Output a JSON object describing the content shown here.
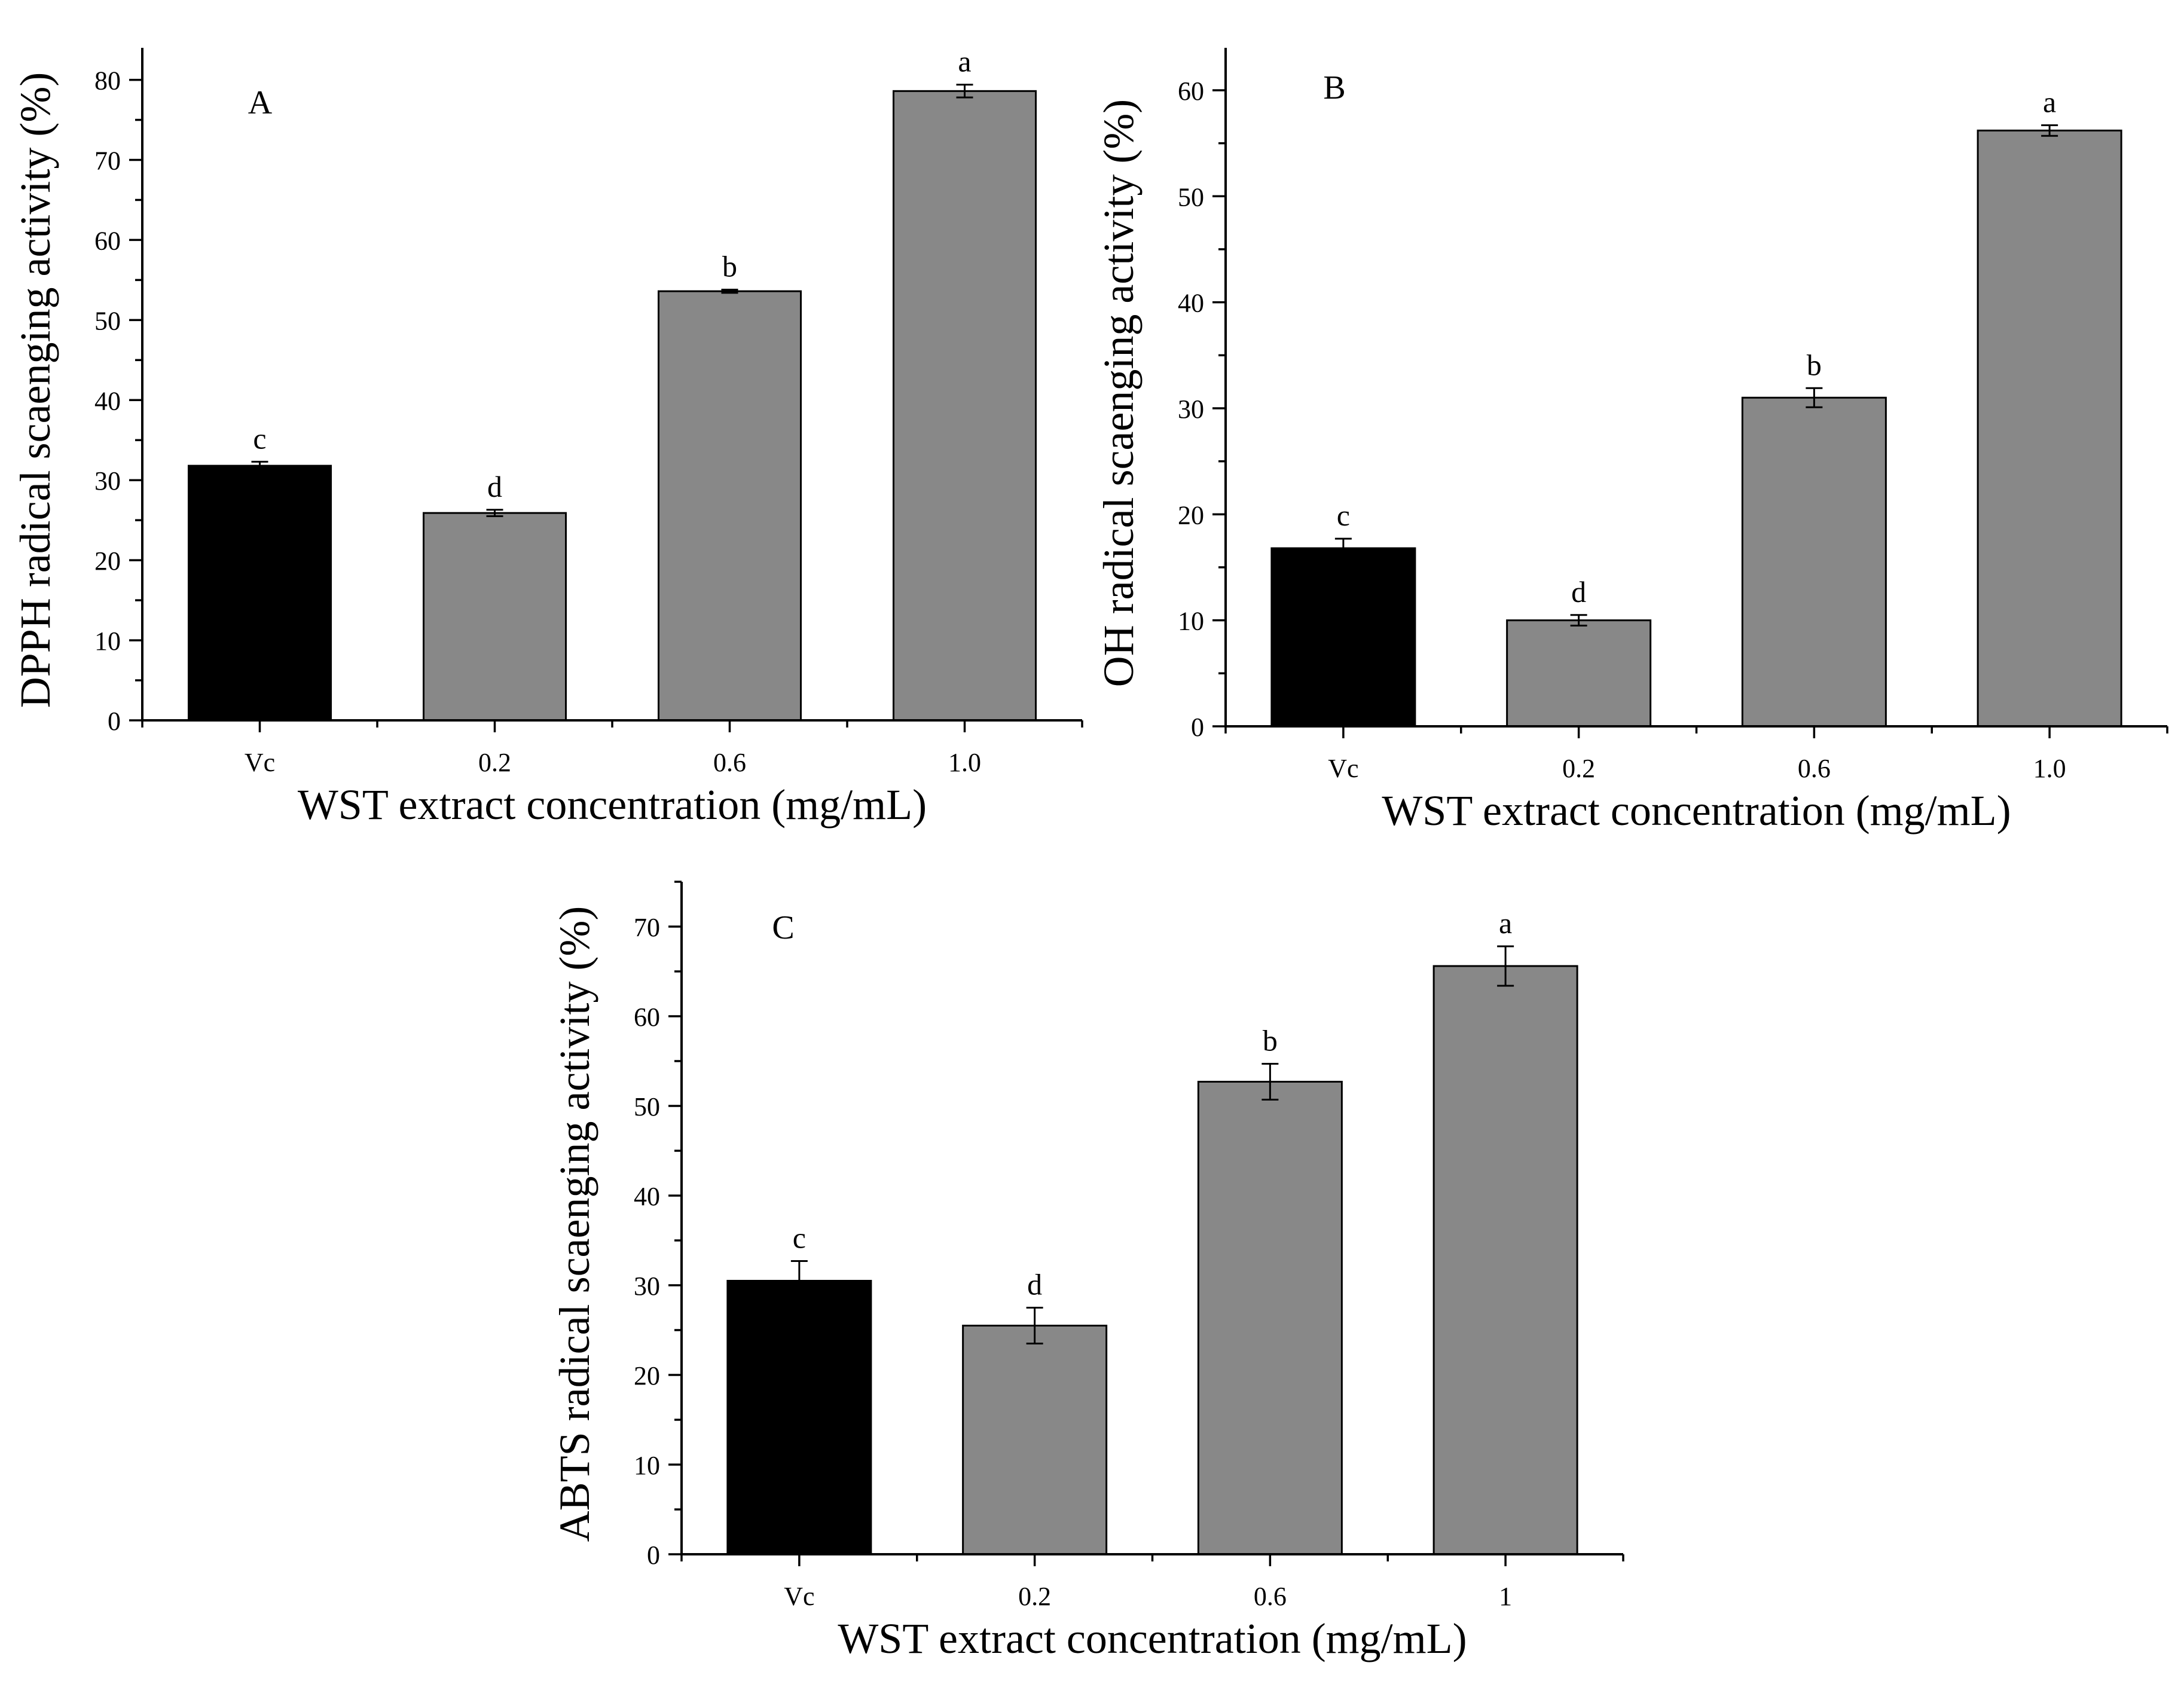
{
  "colors": {
    "vc_bar": "#000000",
    "wst_bar": "#888888",
    "axis": "#000000",
    "background": "#ffffff"
  },
  "chart_data": [
    {
      "type": "bar",
      "panel_label": "A",
      "categories": [
        "Vc",
        "0.2",
        "0.6",
        "1.0"
      ],
      "values": [
        31.8,
        25.9,
        53.6,
        78.6
      ],
      "errors": [
        0.5,
        0.4,
        0.2,
        0.8
      ],
      "significance": [
        "c",
        "d",
        "b",
        "a"
      ],
      "xlabel": "WST extract concentration (mg/mL)",
      "ylabel": "DPPH radical scaenging activity (%)",
      "ylim": [
        0,
        84
      ],
      "yticks": [
        0,
        10,
        20,
        30,
        40,
        50,
        60,
        70,
        80
      ],
      "grid": false
    },
    {
      "type": "bar",
      "panel_label": "B",
      "categories": [
        "Vc",
        "0.2",
        "0.6",
        "1.0"
      ],
      "values": [
        16.8,
        10.0,
        31.0,
        56.2
      ],
      "errors": [
        0.9,
        0.5,
        0.9,
        0.5
      ],
      "significance": [
        "c",
        "d",
        "b",
        "a"
      ],
      "xlabel": "WST extract concentration (mg/mL)",
      "ylabel": "OH radical scaenging activity (%)",
      "ylim": [
        0,
        64
      ],
      "yticks": [
        0,
        10,
        20,
        30,
        40,
        50,
        60
      ],
      "grid": false
    },
    {
      "type": "bar",
      "panel_label": "C",
      "categories": [
        "Vc",
        "0.2",
        "0.6",
        "1"
      ],
      "values": [
        30.5,
        25.5,
        52.7,
        65.6
      ],
      "errors": [
        2.2,
        2.0,
        2.0,
        2.2
      ],
      "significance": [
        "c",
        "d",
        "b",
        "a"
      ],
      "xlabel": "WST extract concentration (mg/mL)",
      "ylabel": "ABTS radical scaenging activity (%)",
      "ylim": [
        0,
        75
      ],
      "yticks": [
        0,
        10,
        20,
        30,
        40,
        50,
        60,
        70
      ],
      "grid": false
    }
  ]
}
